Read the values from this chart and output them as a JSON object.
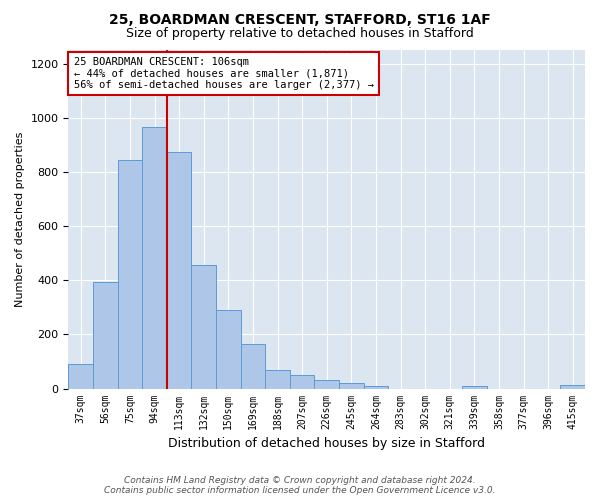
{
  "title1": "25, BOARDMAN CRESCENT, STAFFORD, ST16 1AF",
  "title2": "Size of property relative to detached houses in Stafford",
  "xlabel": "Distribution of detached houses by size in Stafford",
  "ylabel": "Number of detached properties",
  "footer1": "Contains HM Land Registry data © Crown copyright and database right 2024.",
  "footer2": "Contains public sector information licensed under the Open Government Licence v3.0.",
  "annotation_line1": "25 BOARDMAN CRESCENT: 106sqm",
  "annotation_line2": "← 44% of detached houses are smaller (1,871)",
  "annotation_line3": "56% of semi-detached houses are larger (2,377) →",
  "categories": [
    "37sqm",
    "56sqm",
    "75sqm",
    "94sqm",
    "113sqm",
    "132sqm",
    "150sqm",
    "169sqm",
    "188sqm",
    "207sqm",
    "226sqm",
    "245sqm",
    "264sqm",
    "283sqm",
    "302sqm",
    "321sqm",
    "339sqm",
    "358sqm",
    "377sqm",
    "396sqm",
    "415sqm"
  ],
  "values": [
    90,
    395,
    845,
    965,
    875,
    455,
    290,
    163,
    68,
    50,
    30,
    22,
    10,
    0,
    0,
    0,
    10,
    0,
    0,
    0,
    12
  ],
  "bar_color": "#aec6e8",
  "bar_edge_color": "#5b9bd5",
  "red_line_color": "#cc0000",
  "red_line_x": 3.5,
  "annotation_box_edge_color": "#cc0000",
  "background_color": "#ffffff",
  "plot_background_color": "#dce6f1",
  "grid_color": "#ffffff",
  "ylim": [
    0,
    1250
  ],
  "yticks": [
    0,
    200,
    400,
    600,
    800,
    1000,
    1200
  ],
  "title1_fontsize": 10,
  "title2_fontsize": 9,
  "xlabel_fontsize": 9,
  "ylabel_fontsize": 8,
  "tick_fontsize": 8,
  "xtick_fontsize": 7,
  "footer_fontsize": 6.5,
  "annotation_fontsize": 7.5
}
